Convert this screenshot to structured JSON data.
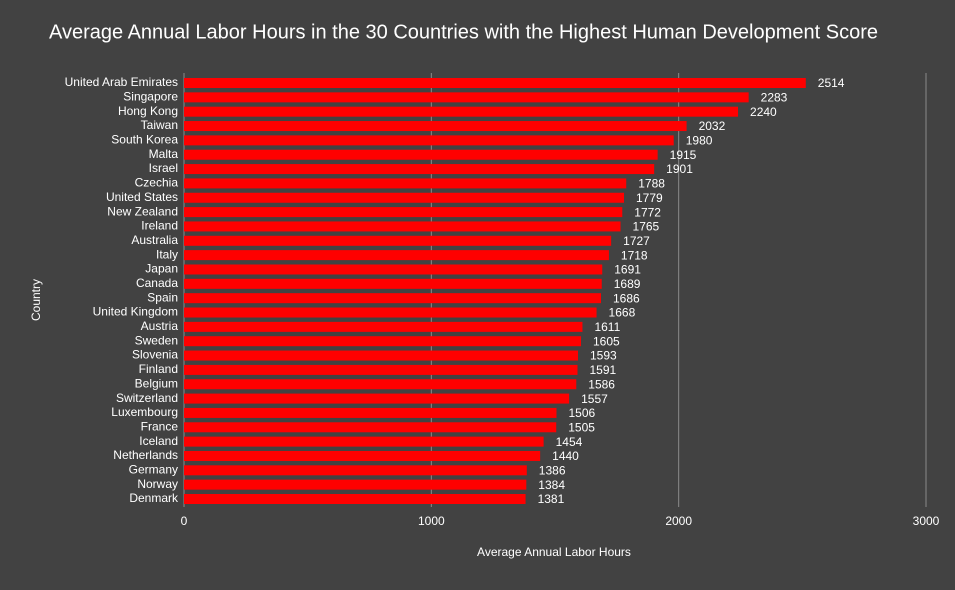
{
  "chart_data": {
    "type": "bar",
    "orientation": "horizontal",
    "title": "Average Annual Labor Hours in the 30 Countries with the Highest Human Development Score",
    "x_label": "Average Annual Labor Hours",
    "y_label": "Country",
    "categories": [
      "United Arab Emirates",
      "Singapore",
      "Hong Kong",
      "Taiwan",
      "South Korea",
      "Malta",
      "Israel",
      "Czechia",
      "United States",
      "New Zealand",
      "Ireland",
      "Australia",
      "Italy",
      "Japan",
      "Canada",
      "Spain",
      "United Kingdom",
      "Austria",
      "Sweden",
      "Slovenia",
      "Finland",
      "Belgium",
      "Switzerland",
      "Luxembourg",
      "France",
      "Iceland",
      "Netherlands",
      "Germany",
      "Norway",
      "Denmark"
    ],
    "values": [
      2514,
      2283,
      2240,
      2032,
      1980,
      1915,
      1901,
      1788,
      1779,
      1772,
      1765,
      1727,
      1718,
      1691,
      1689,
      1686,
      1668,
      1611,
      1605,
      1593,
      1591,
      1586,
      1557,
      1506,
      1505,
      1454,
      1440,
      1386,
      1384,
      1381
    ],
    "color": "#ff0000",
    "xlim": [
      0,
      3000
    ],
    "xticks": [
      0,
      1000,
      2000,
      3000
    ],
    "grid": true
  }
}
